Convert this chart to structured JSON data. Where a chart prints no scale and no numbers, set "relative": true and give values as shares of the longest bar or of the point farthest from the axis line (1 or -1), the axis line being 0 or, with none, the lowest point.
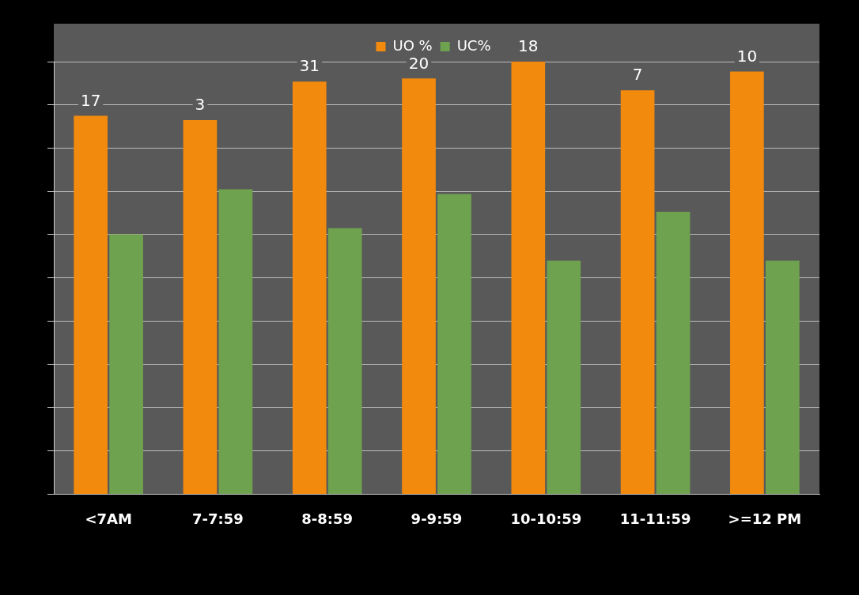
{
  "chart_data": {
    "type": "bar",
    "relative": true,
    "categories": [
      "<7AM",
      "7-7:59",
      "8-8:59",
      "9-9:59",
      "10-10:59",
      "11-11:59",
      ">=12 PM"
    ],
    "series": [
      {
        "name": "UO %",
        "color": "#f28a0e",
        "values": [
          0.875,
          0.865,
          0.954,
          0.961,
          1,
          0.934,
          0.977
        ]
      },
      {
        "name": "UC%",
        "color": "#6fa24f",
        "values": [
          0.601,
          0.705,
          0.615,
          0.694,
          0.54,
          0.653,
          0.54
        ]
      }
    ],
    "annotations": [
      {
        "text": "17",
        "x": "<7AM",
        "y": 0.875
      },
      {
        "text": "3",
        "x": "7-7:59",
        "y": 0.865
      },
      {
        "text": "31",
        "x": "8-8:59",
        "y": 0.954
      },
      {
        "text": "20",
        "x": "9-9:59",
        "y": 0.961
      },
      {
        "text": "18",
        "x": "10-10:59",
        "y": 1
      },
      {
        "text": "7",
        "x": "11-11:59",
        "y": 0.934
      },
      {
        "text": "10",
        "x": ">=12 PM",
        "y": 0.977
      }
    ],
    "grid": "y",
    "legend": "top"
  }
}
